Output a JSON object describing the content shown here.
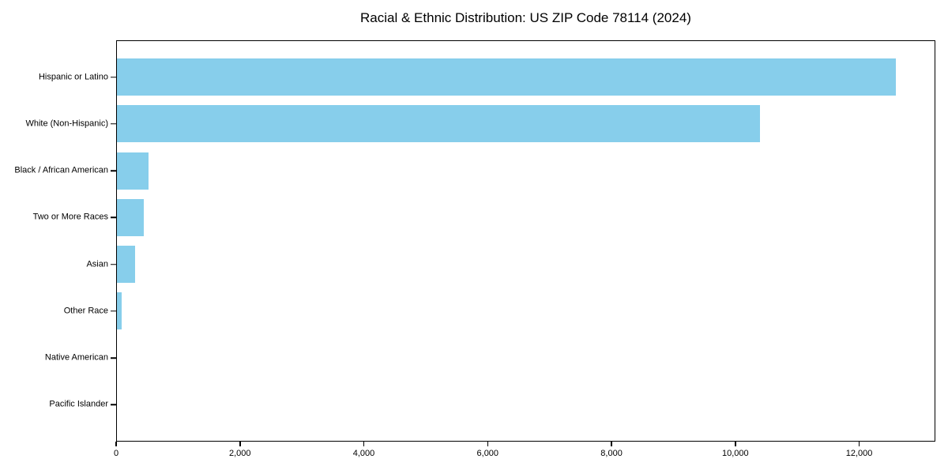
{
  "chart_data": {
    "type": "bar",
    "orientation": "horizontal",
    "title": "Racial & Ethnic Distribution: US ZIP Code 78114 (2024)",
    "categories": [
      "Hispanic or Latino",
      "White (Non-Hispanic)",
      "Black / African American",
      "Two or More Races",
      "Asian",
      "Other Race",
      "Native American",
      "Pacific Islander"
    ],
    "values": [
      12600,
      10400,
      510,
      430,
      290,
      75,
      0,
      0
    ],
    "xlabel": "",
    "ylabel": "",
    "xlim": [
      0,
      13230
    ],
    "x_ticks": [
      0,
      2000,
      4000,
      6000,
      8000,
      10000,
      12000
    ],
    "x_tick_labels": [
      "0",
      "2,000",
      "4,000",
      "6,000",
      "8,000",
      "10,000",
      "12,000"
    ],
    "bar_color": "#87CEEB",
    "background_color": "#ffffff",
    "spine_color": "#000000",
    "grid": false,
    "legend": null
  }
}
